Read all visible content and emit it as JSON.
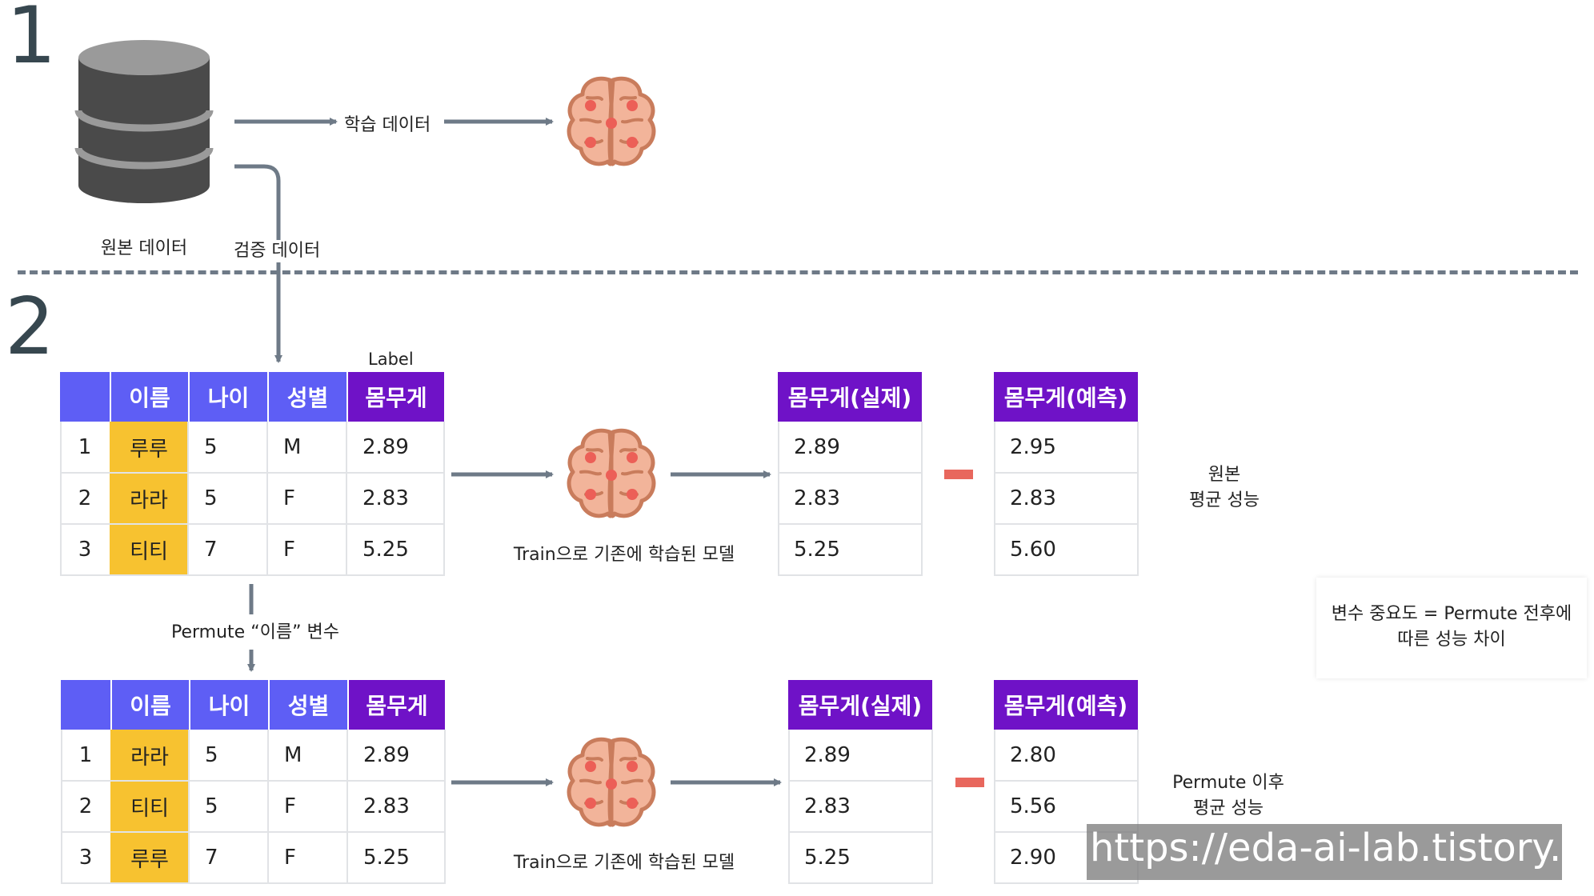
{
  "section1": {
    "number": "1",
    "db_label": "원본 데이터",
    "train_label": "학습 데이터",
    "valid_label": "검증 데이터"
  },
  "section2": {
    "number": "2",
    "label_caption": "Label",
    "permute_caption": "Permute “이름” 변수",
    "model_caption": "Train으로 기존에 학습된 모델",
    "importance_note": [
      "변수 중요도 = Permute 전후에",
      "따른 성능 차이"
    ]
  },
  "tables": {
    "headers": [
      "이름",
      "나이",
      "성별",
      "몸무게"
    ],
    "original": [
      {
        "idx": "1",
        "name": "루루",
        "age": "5",
        "sex": "M",
        "weight": "2.89"
      },
      {
        "idx": "2",
        "name": "라라",
        "age": "5",
        "sex": "F",
        "weight": "2.83"
      },
      {
        "idx": "3",
        "name": "티티",
        "age": "7",
        "sex": "F",
        "weight": "5.25"
      }
    ],
    "permuted": [
      {
        "idx": "1",
        "name": "라라",
        "age": "5",
        "sex": "M",
        "weight": "2.89"
      },
      {
        "idx": "2",
        "name": "티티",
        "age": "5",
        "sex": "F",
        "weight": "2.83"
      },
      {
        "idx": "3",
        "name": "루루",
        "age": "7",
        "sex": "F",
        "weight": "5.25"
      }
    ]
  },
  "results": {
    "actual_header": "몸무게(실제)",
    "pred_header": "몸무게(예측)",
    "original": {
      "actual": [
        "2.89",
        "2.83",
        "5.25"
      ],
      "pred": [
        "2.95",
        "2.83",
        "5.60"
      ],
      "caption": [
        "원본",
        "평균 성능"
      ]
    },
    "permuted": {
      "actual": [
        "2.89",
        "2.83",
        "5.25"
      ],
      "pred": [
        "2.80",
        "5.56",
        "2.90"
      ],
      "caption": [
        "Permute 이후",
        "평균 성능"
      ]
    }
  },
  "watermark": "https://eda-ai-lab.tistory.com",
  "colors": {
    "header_blue": "#5e5ef5",
    "header_purple": "#6f12c7",
    "name_highlight": "#f7c230",
    "minus_red": "#e8675d",
    "brain_fill": "#f2b49a",
    "arrow_gray": "#6e7a87",
    "database_gray": "#4a4a4a"
  },
  "icons": [
    "database-icon",
    "brain-icon",
    "arrow-right-icon",
    "arrow-down-icon",
    "minus-icon"
  ]
}
